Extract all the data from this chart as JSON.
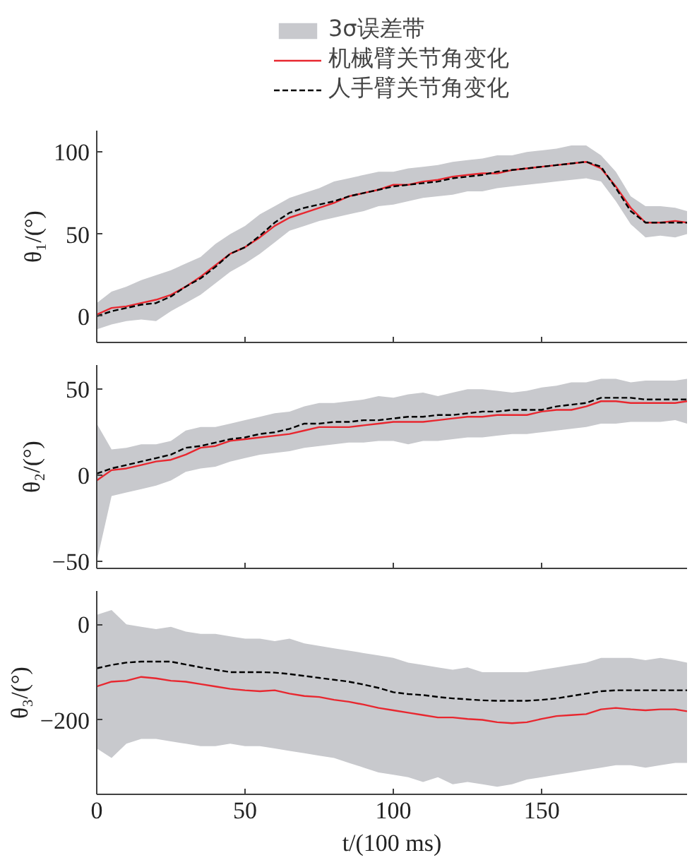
{
  "chart_data": [
    {
      "type": "line",
      "x": [
        0,
        5,
        10,
        15,
        20,
        25,
        30,
        35,
        40,
        45,
        50,
        55,
        60,
        65,
        70,
        75,
        80,
        85,
        90,
        95,
        100,
        105,
        110,
        115,
        120,
        125,
        130,
        135,
        140,
        145,
        150,
        155,
        160,
        165,
        170,
        175,
        180,
        185,
        190,
        195,
        199
      ],
      "xlim": [
        0,
        199
      ],
      "xticks": [
        0,
        50,
        100,
        150
      ],
      "ylim": [
        -16,
        113
      ],
      "yticks": [
        0,
        50,
        100
      ],
      "ylabel": "θ₁/(°)",
      "tick_labels": "y",
      "legend": "top",
      "series": [
        {
          "name": "3σ误差带",
          "type": "area",
          "color": "#c8c9cd",
          "values": [
            null,
            null,
            null,
            null,
            null,
            null,
            null,
            null,
            null,
            null,
            null,
            null,
            null,
            null,
            null,
            null,
            null,
            null,
            null,
            null,
            null,
            null,
            null,
            null,
            null,
            null,
            null,
            null,
            null,
            null,
            null,
            null,
            null,
            null,
            null,
            null,
            null,
            null,
            null,
            null,
            null
          ],
          "lower": [
            -8,
            -5,
            -3,
            -2,
            -3,
            3,
            8,
            13,
            20,
            27,
            32,
            38,
            45,
            52,
            55,
            58,
            60,
            62,
            64,
            67,
            68,
            70,
            72,
            73,
            74,
            76,
            76,
            78,
            79,
            80,
            81,
            82,
            83,
            84,
            82,
            70,
            56,
            48,
            49,
            48,
            50
          ],
          "upper": [
            8,
            15,
            18,
            22,
            25,
            28,
            32,
            36,
            44,
            50,
            55,
            62,
            67,
            72,
            75,
            78,
            82,
            84,
            86,
            88,
            88,
            90,
            91,
            92,
            94,
            95,
            96,
            98,
            98,
            100,
            101,
            102,
            104,
            104,
            98,
            88,
            73,
            67,
            67,
            66,
            64
          ]
        },
        {
          "name": "机械臂关节角变化",
          "color": "#e8272f",
          "line_style": "solid",
          "values": [
            1,
            5,
            6,
            8,
            10,
            13,
            18,
            24,
            31,
            38,
            42,
            48,
            55,
            60,
            63,
            66,
            69,
            73,
            75,
            77,
            80,
            80,
            82,
            83,
            85,
            86,
            87,
            87,
            89,
            90,
            91,
            92,
            93,
            94,
            90,
            79,
            66,
            57,
            57,
            58,
            57
          ]
        },
        {
          "name": "人手臂关节角变化",
          "color": "#000000",
          "line_style": "dashed",
          "values": [
            0,
            3,
            5,
            7,
            8,
            12,
            18,
            23,
            30,
            38,
            42,
            49,
            57,
            63,
            66,
            68,
            70,
            73,
            75,
            77,
            79,
            80,
            81,
            82,
            84,
            85,
            86,
            88,
            89,
            90,
            91,
            92,
            93,
            94,
            91,
            78,
            64,
            57,
            57,
            57,
            57
          ]
        }
      ]
    },
    {
      "type": "line",
      "x": [
        0,
        5,
        10,
        15,
        20,
        25,
        30,
        35,
        40,
        45,
        50,
        55,
        60,
        65,
        70,
        75,
        80,
        85,
        90,
        95,
        100,
        105,
        110,
        115,
        120,
        125,
        130,
        135,
        140,
        145,
        150,
        155,
        160,
        165,
        170,
        175,
        180,
        185,
        190,
        195,
        199
      ],
      "xlim": [
        0,
        199
      ],
      "xticks": [
        0,
        50,
        100,
        150
      ],
      "ylim": [
        -54,
        64
      ],
      "yticks": [
        {
          "value": -50,
          "label": "−50"
        },
        0,
        50
      ],
      "ylabel": "θ₂/(°)",
      "tick_labels": "y",
      "series": [
        {
          "type": "area",
          "color": "#c8c9cd",
          "values": [
            null,
            null,
            null,
            null,
            null,
            null,
            null,
            null,
            null,
            null,
            null,
            null,
            null,
            null,
            null,
            null,
            null,
            null,
            null,
            null,
            null,
            null,
            null,
            null,
            null,
            null,
            null,
            null,
            null,
            null,
            null,
            null,
            null,
            null,
            null,
            null,
            null,
            null,
            null,
            null,
            null
          ],
          "lower": [
            -50,
            -12,
            -10,
            -8,
            -6,
            -3,
            2,
            4,
            5,
            8,
            10,
            12,
            13,
            14,
            16,
            17,
            18,
            19,
            19,
            20,
            20,
            18,
            20,
            20,
            21,
            22,
            22,
            23,
            24,
            24,
            25,
            26,
            27,
            28,
            30,
            30,
            31,
            31,
            31,
            32,
            30
          ],
          "upper": [
            30,
            15,
            16,
            18,
            18,
            20,
            26,
            28,
            28,
            30,
            32,
            34,
            36,
            37,
            40,
            42,
            42,
            43,
            44,
            46,
            45,
            47,
            48,
            46,
            48,
            50,
            50,
            49,
            48,
            49,
            51,
            52,
            54,
            54,
            56,
            56,
            54,
            55,
            55,
            55,
            56
          ]
        },
        {
          "color": "#e8272f",
          "line_style": "solid",
          "values": [
            -3,
            3,
            4,
            6,
            8,
            9,
            12,
            16,
            17,
            20,
            21,
            22,
            23,
            24,
            26,
            28,
            28,
            28,
            29,
            30,
            31,
            31,
            31,
            32,
            33,
            34,
            34,
            35,
            35,
            35,
            37,
            38,
            38,
            40,
            43,
            43,
            42,
            42,
            42,
            42,
            43
          ]
        },
        {
          "color": "#000000",
          "line_style": "dashed",
          "values": [
            1,
            4,
            6,
            8,
            10,
            12,
            16,
            17,
            19,
            21,
            22,
            24,
            25,
            27,
            30,
            30,
            31,
            31,
            32,
            32,
            33,
            34,
            34,
            35,
            35,
            36,
            37,
            37,
            38,
            38,
            38,
            40,
            41,
            42,
            45,
            45,
            45,
            44,
            44,
            44,
            44
          ]
        }
      ]
    },
    {
      "type": "line",
      "x": [
        0,
        5,
        10,
        15,
        20,
        25,
        30,
        35,
        40,
        45,
        50,
        55,
        60,
        65,
        70,
        75,
        80,
        85,
        90,
        95,
        100,
        105,
        110,
        115,
        120,
        125,
        130,
        135,
        140,
        145,
        150,
        155,
        160,
        165,
        170,
        175,
        180,
        185,
        190,
        195,
        199
      ],
      "xlim": [
        0,
        199
      ],
      "xticks": [
        0,
        50,
        100,
        150
      ],
      "ylim": [
        -356,
        70
      ],
      "yticks": [
        {
          "value": -200,
          "label": "−200"
        },
        0
      ],
      "ylabel": "θ₃/(°)",
      "xlabel": "t/(100 ms)",
      "series": [
        {
          "type": "area",
          "color": "#c8c9cd",
          "values": [
            null,
            null,
            null,
            null,
            null,
            null,
            null,
            null,
            null,
            null,
            null,
            null,
            null,
            null,
            null,
            null,
            null,
            null,
            null,
            null,
            null,
            null,
            null,
            null,
            null,
            null,
            null,
            null,
            null,
            null,
            null,
            null,
            null,
            null,
            null,
            null,
            null,
            null,
            null,
            null,
            null
          ],
          "lower": [
            -260,
            -280,
            -250,
            -240,
            -240,
            -245,
            -250,
            -255,
            -255,
            -250,
            -255,
            -255,
            -260,
            -265,
            -270,
            -275,
            -280,
            -290,
            -300,
            -310,
            -315,
            -320,
            -330,
            -320,
            -335,
            -330,
            -335,
            -340,
            -335,
            -325,
            -320,
            -315,
            -310,
            -305,
            -300,
            -295,
            -295,
            -300,
            -295,
            -290,
            -290
          ],
          "upper": [
            20,
            30,
            0,
            -5,
            -10,
            -5,
            -15,
            -20,
            -20,
            -25,
            -30,
            -30,
            -35,
            -30,
            -40,
            -45,
            -50,
            -55,
            -60,
            -65,
            -70,
            -80,
            -85,
            -90,
            -95,
            -90,
            -100,
            -100,
            -100,
            -100,
            -95,
            -90,
            -85,
            -80,
            -70,
            -70,
            -70,
            -75,
            -70,
            -75,
            -80
          ]
        },
        {
          "color": "#e8272f",
          "line_style": "solid",
          "values": [
            -130,
            -120,
            -118,
            -110,
            -113,
            -118,
            -120,
            -125,
            -130,
            -135,
            -138,
            -140,
            -138,
            -145,
            -150,
            -152,
            -158,
            -162,
            -168,
            -175,
            -180,
            -185,
            -190,
            -195,
            -195,
            -198,
            -200,
            -205,
            -207,
            -205,
            -198,
            -192,
            -190,
            -188,
            -178,
            -175,
            -178,
            -180,
            -178,
            -178,
            -182
          ]
        },
        {
          "color": "#000000",
          "line_style": "dashed",
          "values": [
            -92,
            -85,
            -80,
            -78,
            -78,
            -78,
            -84,
            -90,
            -95,
            -100,
            -100,
            -100,
            -101,
            -104,
            -108,
            -112,
            -116,
            -120,
            -126,
            -133,
            -142,
            -146,
            -148,
            -152,
            -155,
            -157,
            -159,
            -160,
            -160,
            -160,
            -158,
            -155,
            -150,
            -145,
            -140,
            -138,
            -138,
            -138,
            -138,
            -138,
            -138
          ]
        }
      ]
    }
  ]
}
